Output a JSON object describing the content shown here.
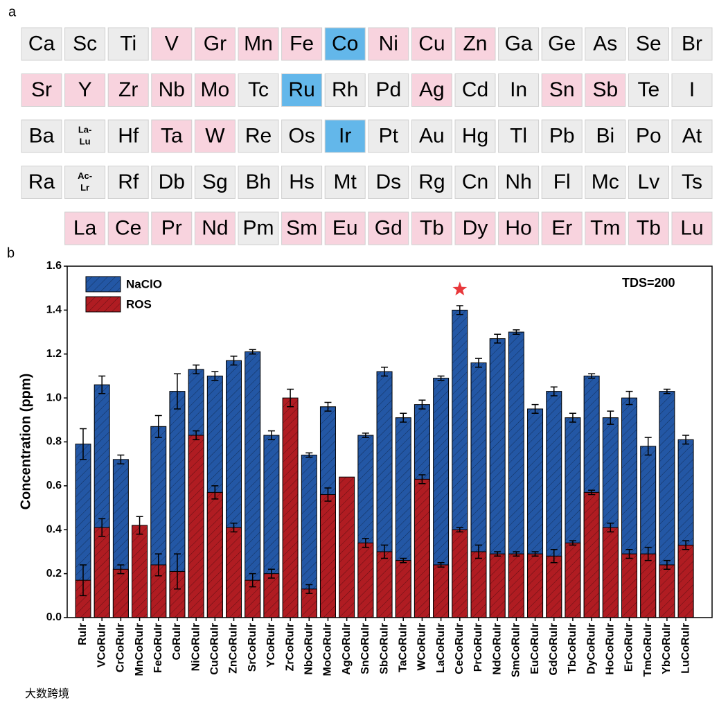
{
  "panel_labels": [
    "a",
    "b"
  ],
  "periodic_table": {
    "rows": [
      [
        {
          "symbol": "Ca",
          "color": "#ececec"
        },
        {
          "symbol": "Sc",
          "color": "#ececec"
        },
        {
          "symbol": "Ti",
          "color": "#ececec"
        },
        {
          "symbol": "V",
          "color": "#f8d3de"
        },
        {
          "symbol": "Gr",
          "color": "#f8d3de"
        },
        {
          "symbol": "Mn",
          "color": "#f8d3de"
        },
        {
          "symbol": "Fe",
          "color": "#f8d3de"
        },
        {
          "symbol": "Co",
          "color": "#63b7ea"
        },
        {
          "symbol": "Ni",
          "color": "#f8d3de"
        },
        {
          "symbol": "Cu",
          "color": "#f8d3de"
        },
        {
          "symbol": "Zn",
          "color": "#f8d3de"
        },
        {
          "symbol": "Ga",
          "color": "#ececec"
        },
        {
          "symbol": "Ge",
          "color": "#ececec"
        },
        {
          "symbol": "As",
          "color": "#ececec"
        },
        {
          "symbol": "Se",
          "color": "#ececec"
        },
        {
          "symbol": "Br",
          "color": "#ececec"
        }
      ],
      [
        {
          "symbol": "Sr",
          "color": "#f8d3de"
        },
        {
          "symbol": "Y",
          "color": "#f8d3de"
        },
        {
          "symbol": "Zr",
          "color": "#f8d3de"
        },
        {
          "symbol": "Nb",
          "color": "#f8d3de"
        },
        {
          "symbol": "Mo",
          "color": "#f8d3de"
        },
        {
          "symbol": "Tc",
          "color": "#ececec"
        },
        {
          "symbol": "Ru",
          "color": "#63b7ea"
        },
        {
          "symbol": "Rh",
          "color": "#ececec"
        },
        {
          "symbol": "Pd",
          "color": "#ececec"
        },
        {
          "symbol": "Ag",
          "color": "#f8d3de"
        },
        {
          "symbol": "Cd",
          "color": "#ececec"
        },
        {
          "symbol": "In",
          "color": "#ececec"
        },
        {
          "symbol": "Sn",
          "color": "#f8d3de"
        },
        {
          "symbol": "Sb",
          "color": "#f8d3de"
        },
        {
          "symbol": "Te",
          "color": "#ececec"
        },
        {
          "symbol": "I",
          "color": "#ececec"
        }
      ],
      [
        {
          "symbol": "Ba",
          "color": "#ececec"
        },
        {
          "symbol": [
            "La-",
            "Lu"
          ],
          "color": "#ececec"
        },
        {
          "symbol": "Hf",
          "color": "#ececec"
        },
        {
          "symbol": "Ta",
          "color": "#f8d3de"
        },
        {
          "symbol": "W",
          "color": "#f8d3de"
        },
        {
          "symbol": "Re",
          "color": "#ececec"
        },
        {
          "symbol": "Os",
          "color": "#ececec"
        },
        {
          "symbol": "Ir",
          "color": "#63b7ea"
        },
        {
          "symbol": "Pt",
          "color": "#ececec"
        },
        {
          "symbol": "Au",
          "color": "#ececec"
        },
        {
          "symbol": "Hg",
          "color": "#ececec"
        },
        {
          "symbol": "Tl",
          "color": "#ececec"
        },
        {
          "symbol": "Pb",
          "color": "#ececec"
        },
        {
          "symbol": "Bi",
          "color": "#ececec"
        },
        {
          "symbol": "Po",
          "color": "#ececec"
        },
        {
          "symbol": "At",
          "color": "#ececec"
        }
      ],
      [
        {
          "symbol": "Ra",
          "color": "#ececec"
        },
        {
          "symbol": [
            "Ac-",
            "Lr"
          ],
          "color": "#ececec"
        },
        {
          "symbol": "Rf",
          "color": "#ececec"
        },
        {
          "symbol": "Db",
          "color": "#ececec"
        },
        {
          "symbol": "Sg",
          "color": "#ececec"
        },
        {
          "symbol": "Bh",
          "color": "#ececec"
        },
        {
          "symbol": "Hs",
          "color": "#ececec"
        },
        {
          "symbol": "Mt",
          "color": "#ececec"
        },
        {
          "symbol": "Ds",
          "color": "#ececec"
        },
        {
          "symbol": "Rg",
          "color": "#ececec"
        },
        {
          "symbol": "Cn",
          "color": "#ececec"
        },
        {
          "symbol": "Nh",
          "color": "#ececec"
        },
        {
          "symbol": "Fl",
          "color": "#ececec"
        },
        {
          "symbol": "Mc",
          "color": "#ececec"
        },
        {
          "symbol": "Lv",
          "color": "#ececec"
        },
        {
          "symbol": "Ts",
          "color": "#ececec"
        }
      ],
      [
        {
          "symbol": "La",
          "color": "#f8d3de"
        },
        {
          "symbol": "Ce",
          "color": "#f8d3de"
        },
        {
          "symbol": "Pr",
          "color": "#f8d3de"
        },
        {
          "symbol": "Nd",
          "color": "#f8d3de"
        },
        {
          "symbol": "Pm",
          "color": "#ececec"
        },
        {
          "symbol": "Sm",
          "color": "#f8d3de"
        },
        {
          "symbol": "Eu",
          "color": "#f8d3de"
        },
        {
          "symbol": "Gd",
          "color": "#f8d3de"
        },
        {
          "symbol": "Tb",
          "color": "#f8d3de"
        },
        {
          "symbol": "Dy",
          "color": "#f8d3de"
        },
        {
          "symbol": "Ho",
          "color": "#f8d3de"
        },
        {
          "symbol": "Er",
          "color": "#f8d3de"
        },
        {
          "symbol": "Tm",
          "color": "#f8d3de"
        },
        {
          "symbol": "Tb",
          "color": "#f8d3de"
        },
        {
          "symbol": "Lu",
          "color": "#f8d3de"
        }
      ]
    ]
  },
  "chart_data": {
    "type": "bar",
    "y_label": "Concentration (ppm)",
    "annotation": "TDS=200",
    "highlight": "CeCoRuIr",
    "categories": [
      "RuIr",
      "VCoRuIr",
      "CrCoRuIr",
      "MnCoRuIr",
      "FeCoRuIr",
      "CoRuIr",
      "NiCoRuIr",
      "CuCoRuIr",
      "ZnCoRuIr",
      "SrCoRuIr",
      "YCoRuIr",
      "ZrCoRuIr",
      "NbCoRuIr",
      "MoCoRuIr",
      "AgCoRuIr",
      "SnCoRuIr",
      "SbCoRuIr",
      "TaCoRuIr",
      "WCoRuIr",
      "LaCoRuIr",
      "CeCoRuIr",
      "PrCoRuIr",
      "NdCoRuIr",
      "SmCoRuIr",
      "EuCoRuIr",
      "GdCoRuIr",
      "TbCoRuIr",
      "DyCoRuIr",
      "HoCoRuIr",
      "ErCoRuIr",
      "TmCoRuIr",
      "YbCoRuIr",
      "LuCoRuIr"
    ],
    "series": [
      {
        "name": "NaClO",
        "color": "#2357a5",
        "values": [
          0.79,
          1.06,
          0.72,
          null,
          0.87,
          1.03,
          1.13,
          1.1,
          1.17,
          1.21,
          0.83,
          null,
          0.74,
          0.96,
          null,
          0.83,
          1.12,
          0.91,
          0.97,
          1.09,
          1.4,
          1.16,
          1.27,
          1.3,
          0.95,
          1.03,
          0.91,
          1.1,
          0.91,
          1.0,
          0.78,
          1.03,
          0.81
        ],
        "errors": [
          0.07,
          0.04,
          0.02,
          null,
          0.05,
          0.08,
          0.02,
          0.02,
          0.02,
          0.01,
          0.02,
          null,
          0.01,
          0.02,
          null,
          0.01,
          0.02,
          0.02,
          0.02,
          0.01,
          0.02,
          0.02,
          0.02,
          0.01,
          0.02,
          0.02,
          0.02,
          0.01,
          0.03,
          0.03,
          0.04,
          0.01,
          0.02
        ]
      },
      {
        "name": "ROS",
        "color": "#b01c22",
        "values": [
          0.17,
          0.41,
          0.22,
          0.42,
          0.24,
          0.21,
          0.83,
          0.57,
          0.41,
          0.17,
          0.2,
          1.0,
          0.13,
          0.56,
          0.64,
          0.34,
          0.3,
          0.26,
          0.63,
          0.24,
          0.4,
          0.3,
          0.29,
          0.29,
          0.29,
          0.28,
          0.34,
          0.57,
          0.41,
          0.29,
          0.29,
          0.24,
          0.33
        ],
        "errors": [
          0.07,
          0.04,
          0.02,
          0.04,
          0.05,
          0.08,
          0.02,
          0.03,
          0.02,
          0.03,
          0.02,
          0.04,
          0.02,
          0.03,
          null,
          0.02,
          0.03,
          0.01,
          0.02,
          0.01,
          0.01,
          0.03,
          0.01,
          0.01,
          0.01,
          0.03,
          0.01,
          0.01,
          0.02,
          0.02,
          0.03,
          0.02,
          0.02
        ]
      }
    ],
    "ylim": [
      0,
      1.6
    ],
    "yticks": [
      {
        "value": 0,
        "label": "0.0"
      },
      0.2,
      0.4,
      0.6,
      0.8,
      {
        "value": 1,
        "label": "1.0"
      },
      1.2,
      1.4,
      1.6
    ],
    "legend": "upper left"
  },
  "watermark": "大数跨境"
}
